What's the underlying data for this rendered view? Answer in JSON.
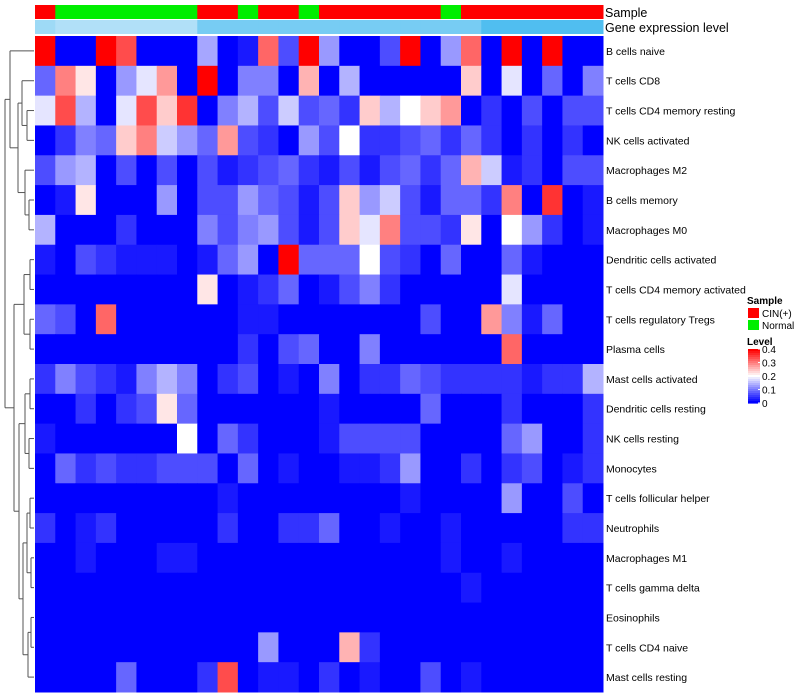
{
  "chart_data": {
    "type": "heatmap",
    "annotation_tracks": [
      "Sample",
      "Gene expression level"
    ],
    "rows": [
      "B cells naive",
      "T cells CD8",
      "T cells CD4 memory resting",
      "NK cells activated",
      "Macrophages M2",
      "B cells memory",
      "Macrophages M0",
      "Dendritic cells activated",
      "T cells CD4 memory activated",
      "T cells regulatory  Tregs",
      "Plasma cells",
      "Mast cells activated",
      "Dendritic cells resting",
      "NK cells resting",
      "Monocytes",
      "T cells follicular helper",
      "Neutrophils",
      "Macrophages M1",
      "T cells gamma delta",
      "Eosinophils",
      "T cells CD4 naive",
      "Mast cells resting"
    ],
    "sample_groups": [
      "CIN(+)",
      "Normal",
      "Normal",
      "Normal",
      "Normal",
      "Normal",
      "Normal",
      "Normal",
      "CIN(+)",
      "CIN(+)",
      "Normal",
      "CIN(+)",
      "CIN(+)",
      "Normal",
      "CIN(+)",
      "CIN(+)",
      "CIN(+)",
      "CIN(+)",
      "CIN(+)",
      "CIN(+)",
      "Normal",
      "CIN(+)",
      "CIN(+)",
      "CIN(+)",
      "CIN(+)",
      "CIN(+)",
      "CIN(+)",
      "CIN(+)"
    ],
    "expression_level": [
      0.2,
      0.15,
      0.15,
      0.15,
      0.15,
      0.15,
      0.15,
      0.15,
      0.3,
      0.3,
      0.3,
      0.3,
      0.3,
      0.3,
      0.3,
      0.3,
      0.3,
      0.3,
      0.3,
      0.3,
      0.3,
      0.3,
      0.4,
      0.4,
      0.4,
      0.4,
      0.4,
      0.4
    ],
    "values": [
      [
        0.4,
        0.0,
        0.0,
        0.4,
        0.34,
        0.0,
        0.0,
        0.0,
        0.13,
        0.0,
        0.02,
        0.32,
        0.06,
        0.4,
        0.12,
        0.0,
        0.0,
        0.06,
        0.4,
        0.0,
        0.12,
        0.32,
        0.0,
        0.4,
        0.0,
        0.4,
        0.0,
        0.0
      ],
      [
        0.08,
        0.3,
        0.22,
        0.0,
        0.12,
        0.18,
        0.28,
        0.0,
        0.4,
        0.0,
        0.1,
        0.1,
        0.0,
        0.26,
        0.0,
        0.14,
        0.0,
        0.0,
        0.0,
        0.0,
        0.0,
        0.24,
        0.0,
        0.18,
        0.0,
        0.08,
        0.0,
        0.1
      ],
      [
        0.18,
        0.34,
        0.14,
        0.0,
        0.18,
        0.34,
        0.24,
        0.36,
        0.0,
        0.1,
        0.14,
        0.06,
        0.16,
        0.06,
        0.08,
        0.04,
        0.24,
        0.14,
        0.2,
        0.24,
        0.28,
        0.0,
        0.04,
        0.0,
        0.06,
        0.0,
        0.06,
        0.06
      ],
      [
        0.0,
        0.04,
        0.1,
        0.08,
        0.24,
        0.3,
        0.16,
        0.12,
        0.08,
        0.28,
        0.06,
        0.04,
        0.0,
        0.12,
        0.06,
        0.2,
        0.04,
        0.04,
        0.06,
        0.08,
        0.04,
        0.08,
        0.04,
        0.0,
        0.04,
        0.0,
        0.04,
        0.0
      ],
      [
        0.06,
        0.12,
        0.14,
        0.0,
        0.06,
        0.0,
        0.06,
        0.0,
        0.06,
        0.02,
        0.04,
        0.06,
        0.08,
        0.04,
        0.02,
        0.06,
        0.02,
        0.06,
        0.08,
        0.04,
        0.08,
        0.26,
        0.16,
        0.02,
        0.04,
        0.0,
        0.06,
        0.06
      ],
      [
        0.0,
        0.02,
        0.22,
        0.0,
        0.0,
        0.0,
        0.12,
        0.0,
        0.06,
        0.06,
        0.12,
        0.08,
        0.06,
        0.02,
        0.06,
        0.24,
        0.12,
        0.16,
        0.06,
        0.02,
        0.08,
        0.08,
        0.04,
        0.3,
        0.0,
        0.36,
        0.0,
        0.02
      ],
      [
        0.14,
        0.0,
        0.0,
        0.0,
        0.04,
        0.0,
        0.0,
        0.0,
        0.1,
        0.06,
        0.1,
        0.12,
        0.06,
        0.02,
        0.06,
        0.24,
        0.18,
        0.3,
        0.06,
        0.06,
        0.04,
        0.22,
        0.0,
        0.2,
        0.12,
        0.04,
        0.0,
        0.02
      ],
      [
        0.02,
        0.0,
        0.06,
        0.04,
        0.02,
        0.02,
        0.02,
        0.0,
        0.02,
        0.08,
        0.12,
        0.0,
        0.4,
        0.08,
        0.08,
        0.08,
        0.2,
        0.06,
        0.04,
        0.0,
        0.08,
        0.0,
        0.0,
        0.08,
        0.02,
        0.0,
        0.0,
        0.0
      ],
      [
        0.0,
        0.0,
        0.0,
        0.0,
        0.0,
        0.0,
        0.0,
        0.0,
        0.22,
        0.0,
        0.02,
        0.04,
        0.08,
        0.0,
        0.02,
        0.06,
        0.1,
        0.04,
        0.0,
        0.0,
        0.0,
        0.0,
        0.0,
        0.18,
        0.0,
        0.0,
        0.0,
        0.0
      ],
      [
        0.08,
        0.06,
        0.0,
        0.32,
        0.0,
        0.0,
        0.0,
        0.0,
        0.0,
        0.0,
        0.02,
        0.02,
        0.0,
        0.0,
        0.0,
        0.0,
        0.0,
        0.0,
        0.0,
        0.06,
        0.0,
        0.0,
        0.28,
        0.1,
        0.02,
        0.08,
        0.0,
        0.0
      ],
      [
        0.0,
        0.0,
        0.0,
        0.0,
        0.0,
        0.0,
        0.0,
        0.0,
        0.0,
        0.0,
        0.04,
        0.0,
        0.06,
        0.08,
        0.0,
        0.0,
        0.1,
        0.0,
        0.0,
        0.0,
        0.0,
        0.0,
        0.0,
        0.32,
        0.0,
        0.0,
        0.0,
        0.0
      ],
      [
        0.04,
        0.1,
        0.06,
        0.04,
        0.02,
        0.1,
        0.14,
        0.1,
        0.0,
        0.04,
        0.06,
        0.0,
        0.02,
        0.0,
        0.1,
        0.0,
        0.04,
        0.04,
        0.08,
        0.06,
        0.04,
        0.04,
        0.04,
        0.04,
        0.02,
        0.04,
        0.04,
        0.14
      ],
      [
        0.0,
        0.0,
        0.04,
        0.0,
        0.04,
        0.06,
        0.22,
        0.08,
        0.0,
        0.0,
        0.0,
        0.0,
        0.0,
        0.0,
        0.02,
        0.0,
        0.0,
        0.0,
        0.0,
        0.08,
        0.0,
        0.0,
        0.0,
        0.04,
        0.0,
        0.0,
        0.0,
        0.04
      ],
      [
        0.02,
        0.0,
        0.0,
        0.0,
        0.0,
        0.0,
        0.0,
        0.2,
        0.0,
        0.08,
        0.04,
        0.0,
        0.0,
        0.0,
        0.02,
        0.06,
        0.06,
        0.06,
        0.06,
        0.0,
        0.0,
        0.0,
        0.0,
        0.08,
        0.12,
        0.0,
        0.0,
        0.04
      ],
      [
        0.0,
        0.08,
        0.04,
        0.06,
        0.04,
        0.04,
        0.06,
        0.06,
        0.06,
        0.0,
        0.08,
        0.0,
        0.02,
        0.0,
        0.0,
        0.02,
        0.02,
        0.04,
        0.12,
        0.0,
        0.0,
        0.04,
        0.0,
        0.04,
        0.06,
        0.0,
        0.02,
        0.04
      ],
      [
        0.0,
        0.0,
        0.0,
        0.0,
        0.0,
        0.0,
        0.0,
        0.0,
        0.0,
        0.02,
        0.0,
        0.0,
        0.0,
        0.0,
        0.0,
        0.0,
        0.0,
        0.0,
        0.02,
        0.0,
        0.0,
        0.0,
        0.0,
        0.12,
        0.0,
        0.0,
        0.06,
        0.0
      ],
      [
        0.04,
        0.0,
        0.02,
        0.04,
        0.0,
        0.0,
        0.0,
        0.0,
        0.0,
        0.04,
        0.0,
        0.0,
        0.04,
        0.04,
        0.08,
        0.0,
        0.0,
        0.02,
        0.0,
        0.0,
        0.02,
        0.0,
        0.0,
        0.0,
        0.0,
        0.0,
        0.04,
        0.04
      ],
      [
        0.0,
        0.0,
        0.02,
        0.0,
        0.0,
        0.0,
        0.02,
        0.02,
        0.0,
        0.0,
        0.0,
        0.0,
        0.0,
        0.0,
        0.0,
        0.0,
        0.0,
        0.0,
        0.0,
        0.0,
        0.02,
        0.0,
        0.0,
        0.02,
        0.0,
        0.0,
        0.0,
        0.0
      ],
      [
        0.0,
        0.0,
        0.0,
        0.0,
        0.0,
        0.0,
        0.0,
        0.0,
        0.0,
        0.0,
        0.0,
        0.0,
        0.0,
        0.0,
        0.0,
        0.0,
        0.0,
        0.0,
        0.0,
        0.0,
        0.0,
        0.02,
        0.0,
        0.0,
        0.0,
        0.0,
        0.0,
        0.0
      ],
      [
        0.0,
        0.0,
        0.0,
        0.0,
        0.0,
        0.0,
        0.0,
        0.0,
        0.0,
        0.0,
        0.0,
        0.0,
        0.0,
        0.0,
        0.0,
        0.0,
        0.0,
        0.0,
        0.0,
        0.0,
        0.0,
        0.0,
        0.0,
        0.0,
        0.0,
        0.0,
        0.0,
        0.0
      ],
      [
        0.0,
        0.0,
        0.0,
        0.0,
        0.0,
        0.0,
        0.0,
        0.0,
        0.0,
        0.0,
        0.0,
        0.12,
        0.0,
        0.0,
        0.0,
        0.26,
        0.04,
        0.0,
        0.0,
        0.0,
        0.0,
        0.0,
        0.0,
        0.0,
        0.0,
        0.0,
        0.0,
        0.0
      ],
      [
        0.0,
        0.0,
        0.0,
        0.0,
        0.08,
        0.0,
        0.0,
        0.0,
        0.04,
        0.34,
        0.0,
        0.02,
        0.02,
        0.0,
        0.04,
        0.0,
        0.02,
        0.0,
        0.0,
        0.06,
        0.0,
        0.02,
        0.0,
        0.0,
        0.0,
        0.0,
        0.0,
        0.0
      ]
    ],
    "color_scale": {
      "min": 0,
      "mid": 0.2,
      "max": 0.4,
      "low": "#0000ff",
      "mid_color": "#ffffff",
      "high": "#ff0000"
    },
    "legends": {
      "sample": {
        "title": "Sample",
        "entries": [
          {
            "label": "CIN(+)",
            "color": "#ff0000"
          },
          {
            "label": "Normal",
            "color": "#00ee00"
          }
        ]
      },
      "level": {
        "title": "Level",
        "ticks": [
          0.4,
          0.3,
          0.2,
          0.1,
          0
        ]
      }
    },
    "row_dendrogram": true,
    "grid": false
  }
}
